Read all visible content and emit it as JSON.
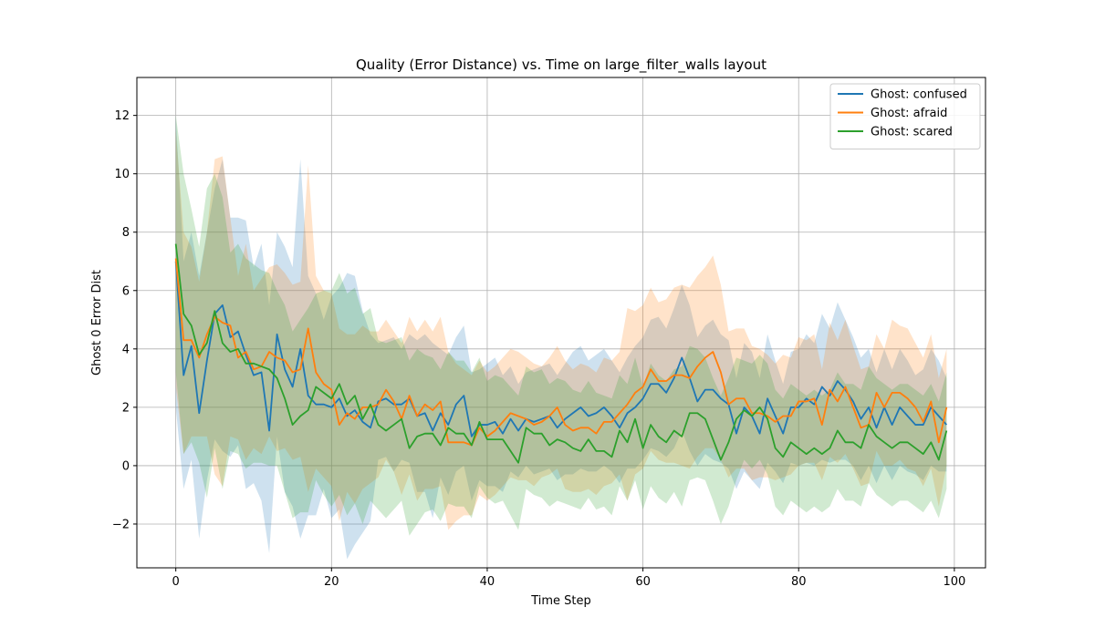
{
  "chart_data": {
    "type": "line",
    "title": "Quality (Error Distance) vs. Time on large_filter_walls layout",
    "xlabel": "Time Step",
    "ylabel": "Ghost 0 Error Dist",
    "xlim": [
      -5,
      104
    ],
    "ylim": [
      -3.5,
      13.3
    ],
    "xticks": [
      0,
      20,
      40,
      60,
      80,
      100
    ],
    "yticks": [
      -2,
      0,
      2,
      4,
      6,
      8,
      10,
      12
    ],
    "xtick_labels": [
      "0",
      "20",
      "40",
      "60",
      "80",
      "100"
    ],
    "ytick_labels": [
      "−2",
      "0",
      "2",
      "4",
      "6",
      "8",
      "10",
      "12"
    ],
    "grid": true,
    "legend_position": "top-right",
    "band_opacity": 0.22,
    "series": [
      {
        "name": "Ghost: confused",
        "color": "#1f77b4",
        "x": [
          0,
          1,
          2,
          3,
          4,
          5,
          6,
          7,
          8,
          9,
          10,
          11,
          12,
          13,
          14,
          15,
          16,
          17,
          18,
          19,
          20,
          21,
          22,
          23,
          24,
          25,
          26,
          27,
          28,
          29,
          30,
          31,
          32,
          33,
          34,
          35,
          36,
          37,
          38,
          39,
          40,
          41,
          42,
          43,
          44,
          45,
          46,
          47,
          48,
          49,
          50,
          51,
          52,
          53,
          54,
          55,
          56,
          57,
          58,
          59,
          60,
          61,
          62,
          63,
          64,
          65,
          66,
          67,
          68,
          69,
          70,
          71,
          72,
          73,
          74,
          75,
          76,
          77,
          78,
          79,
          80,
          81,
          82,
          83,
          84,
          85,
          86,
          87,
          88,
          89,
          90,
          91,
          92,
          93,
          94,
          95,
          96,
          97,
          98,
          99
        ],
        "values": [
          7.0,
          3.1,
          4.1,
          1.8,
          3.6,
          5.2,
          5.5,
          4.4,
          4.6,
          3.8,
          3.1,
          3.2,
          1.2,
          4.5,
          3.3,
          2.7,
          4.0,
          2.4,
          2.1,
          2.1,
          2.0,
          2.3,
          1.7,
          1.9,
          1.5,
          1.3,
          2.2,
          2.3,
          2.1,
          2.1,
          2.3,
          1.7,
          1.8,
          1.2,
          1.8,
          1.4,
          2.1,
          2.4,
          1.0,
          1.4,
          1.4,
          1.5,
          1.1,
          1.6,
          1.2,
          1.6,
          1.5,
          1.6,
          1.7,
          1.3,
          1.6,
          1.8,
          2.0,
          1.7,
          1.8,
          2.0,
          1.7,
          1.3,
          1.8,
          2.0,
          2.3,
          2.8,
          2.8,
          2.5,
          3.0,
          3.7,
          3.0,
          2.2,
          2.6,
          2.6,
          2.3,
          2.1,
          1.1,
          2.0,
          1.7,
          1.1,
          2.3,
          1.7,
          1.1,
          2.0,
          2.0,
          2.3,
          2.1,
          2.7,
          2.4,
          2.9,
          2.6,
          2.2,
          1.6,
          2.0,
          1.3,
          2.0,
          1.4,
          2.0,
          1.7,
          1.4,
          1.4,
          2.0,
          1.7,
          1.4
        ],
        "upper": [
          12.0,
          7.0,
          8.0,
          6.5,
          8.0,
          9.5,
          10.5,
          8.5,
          8.5,
          8.4,
          6.8,
          7.6,
          5.5,
          8.0,
          7.5,
          6.8,
          10.5,
          6.5,
          5.9,
          5.0,
          5.8,
          6.1,
          6.6,
          6.5,
          5.3,
          4.5,
          4.2,
          4.3,
          4.4,
          4.0,
          4.5,
          4.3,
          4.5,
          4.2,
          4.0,
          3.8,
          4.4,
          4.8,
          3.2,
          3.3,
          3.5,
          3.7,
          3.1,
          3.4,
          2.8,
          3.2,
          3.3,
          3.4,
          3.5,
          3.1,
          3.5,
          3.9,
          4.1,
          3.6,
          3.8,
          4.0,
          3.6,
          3.2,
          3.7,
          4.1,
          4.4,
          5.0,
          5.1,
          4.7,
          5.4,
          6.2,
          5.5,
          4.4,
          4.8,
          5.0,
          4.5,
          4.3,
          3.0,
          4.2,
          3.9,
          3.0,
          4.5,
          3.6,
          2.8,
          3.9,
          4.0,
          4.5,
          4.2,
          5.2,
          4.7,
          5.6,
          5.0,
          4.4,
          3.7,
          4.0,
          3.2,
          4.0,
          3.3,
          4.0,
          3.6,
          3.1,
          3.3,
          4.0,
          3.6,
          3.0
        ],
        "lower": [
          2.0,
          -0.8,
          0.2,
          -2.5,
          -0.5,
          0.9,
          0.5,
          0.3,
          0.7,
          -0.8,
          -0.6,
          -1.2,
          -3.0,
          1.0,
          -0.9,
          -1.4,
          -2.5,
          -1.7,
          -1.7,
          -0.8,
          -1.8,
          -1.5,
          -3.2,
          -2.7,
          -2.3,
          -1.9,
          0.2,
          0.3,
          -0.2,
          0.2,
          0.1,
          -0.9,
          -0.9,
          -1.8,
          -0.4,
          -1.0,
          -0.2,
          0.0,
          -1.2,
          -0.5,
          -0.7,
          -0.7,
          -0.9,
          -0.2,
          -0.4,
          0.0,
          -0.3,
          -0.2,
          -0.1,
          -0.5,
          -0.3,
          -0.3,
          -0.1,
          -0.2,
          -0.2,
          0.0,
          -0.2,
          -0.6,
          -0.1,
          -0.1,
          0.2,
          0.6,
          0.5,
          0.3,
          0.6,
          1.2,
          0.5,
          0.0,
          0.4,
          0.2,
          0.1,
          -0.1,
          -0.8,
          -0.2,
          -0.5,
          -0.8,
          0.1,
          -0.2,
          -0.6,
          0.1,
          0.0,
          0.1,
          0.0,
          0.2,
          0.1,
          0.2,
          0.2,
          0.0,
          -0.5,
          0.0,
          -0.6,
          0.0,
          -0.5,
          0.0,
          -0.2,
          -0.3,
          -0.5,
          0.0,
          -0.2,
          -0.2
        ]
      },
      {
        "name": "Ghost: afraid",
        "color": "#ff7f0e",
        "x": [
          0,
          1,
          2,
          3,
          4,
          5,
          6,
          7,
          8,
          9,
          10,
          11,
          12,
          13,
          14,
          15,
          16,
          17,
          18,
          19,
          20,
          21,
          22,
          23,
          24,
          25,
          26,
          27,
          28,
          29,
          30,
          31,
          32,
          33,
          34,
          35,
          36,
          37,
          38,
          39,
          40,
          41,
          42,
          43,
          44,
          45,
          46,
          47,
          48,
          49,
          50,
          51,
          52,
          53,
          54,
          55,
          56,
          57,
          58,
          59,
          60,
          61,
          62,
          63,
          64,
          65,
          66,
          67,
          68,
          69,
          70,
          71,
          72,
          73,
          74,
          75,
          76,
          77,
          78,
          79,
          80,
          81,
          82,
          83,
          84,
          85,
          86,
          87,
          88,
          89,
          90,
          91,
          92,
          93,
          94,
          95,
          96,
          97,
          98,
          99
        ],
        "values": [
          7.1,
          4.3,
          4.3,
          3.7,
          4.5,
          5.1,
          4.9,
          4.8,
          3.7,
          3.9,
          3.3,
          3.4,
          3.9,
          3.7,
          3.6,
          3.2,
          3.3,
          4.7,
          3.2,
          2.8,
          2.6,
          1.4,
          1.8,
          1.6,
          2.0,
          2.0,
          2.1,
          2.6,
          2.2,
          1.6,
          2.4,
          1.7,
          2.1,
          1.9,
          2.2,
          0.8,
          0.8,
          0.8,
          0.7,
          1.3,
          1.0,
          1.2,
          1.5,
          1.8,
          1.7,
          1.6,
          1.4,
          1.5,
          1.7,
          2.0,
          1.4,
          1.2,
          1.3,
          1.3,
          1.1,
          1.5,
          1.5,
          1.8,
          2.1,
          2.5,
          2.7,
          3.3,
          2.9,
          2.9,
          3.1,
          3.1,
          3.0,
          3.4,
          3.7,
          3.9,
          3.2,
          2.1,
          2.3,
          2.3,
          1.8,
          1.8,
          1.7,
          1.5,
          1.7,
          1.7,
          2.2,
          2.2,
          2.3,
          1.4,
          2.6,
          2.2,
          2.7,
          2.0,
          1.3,
          1.4,
          2.5,
          2.0,
          2.5,
          2.5,
          2.3,
          2.0,
          1.5,
          2.2,
          0.8,
          2.0
        ],
        "upper": [
          11.5,
          8.0,
          7.5,
          6.3,
          8.0,
          10.5,
          10.6,
          8.5,
          6.5,
          7.6,
          6.0,
          6.4,
          6.8,
          6.9,
          6.6,
          6.2,
          6.3,
          10.3,
          6.5,
          6.0,
          5.9,
          4.7,
          4.5,
          4.5,
          4.8,
          4.6,
          4.6,
          5.0,
          4.6,
          4.2,
          5.1,
          4.6,
          5.0,
          4.6,
          5.1,
          3.9,
          3.5,
          3.3,
          3.1,
          3.6,
          3.2,
          3.4,
          3.7,
          4.0,
          3.9,
          3.7,
          3.5,
          3.4,
          3.7,
          4.1,
          3.6,
          3.3,
          3.5,
          3.4,
          3.2,
          3.7,
          3.6,
          3.9,
          5.4,
          5.3,
          5.5,
          6.1,
          5.6,
          5.7,
          6.1,
          6.2,
          6.1,
          6.5,
          6.8,
          7.2,
          6.2,
          4.6,
          4.7,
          4.7,
          4.1,
          4.0,
          3.8,
          3.5,
          3.8,
          3.7,
          4.4,
          4.3,
          4.5,
          3.3,
          4.9,
          4.3,
          5.0,
          4.1,
          3.3,
          3.4,
          4.5,
          4.0,
          5.0,
          4.8,
          4.7,
          4.2,
          3.7,
          4.5,
          3.0,
          4.0
        ],
        "lower": [
          2.7,
          0.4,
          1.0,
          1.0,
          1.0,
          -0.3,
          -0.7,
          1.0,
          0.9,
          0.2,
          0.6,
          0.4,
          1.0,
          0.5,
          0.6,
          0.2,
          0.3,
          -0.9,
          -0.1,
          -0.4,
          -0.7,
          -1.9,
          -0.9,
          -1.3,
          -0.8,
          -0.6,
          -0.4,
          0.2,
          -0.2,
          -1.0,
          -0.3,
          -1.2,
          -0.8,
          -0.8,
          -0.7,
          -2.2,
          -1.9,
          -1.7,
          -1.7,
          -1.0,
          -1.2,
          -1.0,
          -0.7,
          -0.4,
          -0.5,
          -0.5,
          -0.7,
          -0.4,
          -0.3,
          -0.1,
          -0.8,
          -0.9,
          -0.9,
          -0.8,
          -1.0,
          -0.7,
          -0.6,
          -0.3,
          -1.2,
          -0.3,
          -0.1,
          0.5,
          0.2,
          0.1,
          0.1,
          0.0,
          -0.1,
          0.3,
          0.6,
          0.6,
          0.2,
          -0.4,
          -0.1,
          -0.1,
          -0.5,
          -0.4,
          -0.4,
          -0.5,
          -0.4,
          -0.3,
          0.0,
          0.1,
          0.1,
          -0.5,
          0.3,
          0.1,
          0.4,
          -0.1,
          -0.7,
          -0.6,
          0.5,
          0.0,
          0.0,
          0.2,
          -0.1,
          -0.2,
          -0.7,
          -0.1,
          -1.4,
          0.0
        ]
      },
      {
        "name": "Ghost: scared",
        "color": "#2ca02c",
        "x": [
          0,
          1,
          2,
          3,
          4,
          5,
          6,
          7,
          8,
          9,
          10,
          11,
          12,
          13,
          14,
          15,
          16,
          17,
          18,
          19,
          20,
          21,
          22,
          23,
          24,
          25,
          26,
          27,
          28,
          29,
          30,
          31,
          32,
          33,
          34,
          35,
          36,
          37,
          38,
          39,
          40,
          41,
          42,
          43,
          44,
          45,
          46,
          47,
          48,
          49,
          50,
          51,
          52,
          53,
          54,
          55,
          56,
          57,
          58,
          59,
          60,
          61,
          62,
          63,
          64,
          65,
          66,
          67,
          68,
          69,
          70,
          71,
          72,
          73,
          74,
          75,
          76,
          77,
          78,
          79,
          80,
          81,
          82,
          83,
          84,
          85,
          86,
          87,
          88,
          89,
          90,
          91,
          92,
          93,
          94,
          95,
          96,
          97,
          98,
          99
        ],
        "values": [
          7.6,
          5.2,
          4.8,
          3.8,
          4.2,
          5.3,
          4.2,
          3.9,
          4.0,
          3.5,
          3.5,
          3.4,
          3.3,
          3.0,
          2.3,
          1.4,
          1.7,
          1.9,
          2.7,
          2.5,
          2.3,
          2.8,
          2.1,
          2.4,
          1.6,
          2.1,
          1.4,
          1.2,
          1.4,
          1.6,
          0.6,
          1.0,
          1.1,
          1.1,
          0.7,
          1.3,
          1.1,
          1.1,
          0.7,
          1.5,
          0.9,
          0.9,
          0.9,
          0.5,
          0.1,
          1.3,
          1.1,
          1.1,
          0.7,
          0.9,
          0.8,
          0.6,
          0.5,
          0.9,
          0.5,
          0.5,
          0.3,
          1.2,
          0.8,
          1.6,
          0.6,
          1.4,
          1.0,
          0.8,
          1.2,
          1.0,
          1.8,
          1.8,
          1.6,
          0.9,
          0.2,
          0.8,
          1.6,
          1.9,
          1.7,
          2.0,
          1.6,
          0.6,
          0.3,
          0.8,
          0.6,
          0.4,
          0.6,
          0.4,
          0.6,
          1.2,
          0.8,
          0.8,
          0.6,
          1.4,
          1.0,
          0.8,
          0.6,
          0.8,
          0.8,
          0.6,
          0.4,
          0.8,
          0.2,
          1.2
        ],
        "upper": [
          12.0,
          10.0,
          8.8,
          7.5,
          9.5,
          10.0,
          9.2,
          7.3,
          7.6,
          7.1,
          6.9,
          6.7,
          6.6,
          6.0,
          5.5,
          4.6,
          5.0,
          5.4,
          5.9,
          6.0,
          6.0,
          6.6,
          5.9,
          6.1,
          5.2,
          5.4,
          4.3,
          4.2,
          4.3,
          4.4,
          3.6,
          4.0,
          3.8,
          3.7,
          3.3,
          3.9,
          3.6,
          3.6,
          3.2,
          3.7,
          2.9,
          3.1,
          3.0,
          2.7,
          2.4,
          3.4,
          3.2,
          3.3,
          2.8,
          3.0,
          2.9,
          2.6,
          2.5,
          2.9,
          2.5,
          2.4,
          2.3,
          3.1,
          2.8,
          3.7,
          2.7,
          3.5,
          3.1,
          2.9,
          3.3,
          3.4,
          4.1,
          4.0,
          3.7,
          3.0,
          2.4,
          3.0,
          3.7,
          3.6,
          3.5,
          3.8,
          3.5,
          2.6,
          2.3,
          2.8,
          2.6,
          2.4,
          2.6,
          2.4,
          2.6,
          3.2,
          2.8,
          2.8,
          2.6,
          3.4,
          3.0,
          2.8,
          2.6,
          2.8,
          2.8,
          2.6,
          2.4,
          2.8,
          2.2,
          3.2
        ],
        "lower": [
          3.2,
          0.4,
          0.8,
          0.1,
          -1.1,
          0.6,
          -0.8,
          0.5,
          0.4,
          -0.1,
          0.1,
          0.1,
          0.0,
          0.0,
          -0.9,
          -1.8,
          -1.6,
          -1.6,
          -0.5,
          -1.0,
          -1.4,
          -1.0,
          -1.7,
          -1.3,
          -2.0,
          -1.2,
          -1.5,
          -1.8,
          -1.5,
          -1.2,
          -2.4,
          -2.0,
          -1.6,
          -1.5,
          -1.9,
          -1.3,
          -1.4,
          -1.4,
          -1.8,
          -0.7,
          -1.1,
          -1.3,
          -1.2,
          -1.7,
          -2.2,
          -0.8,
          -1.0,
          -1.1,
          -1.4,
          -1.2,
          -1.3,
          -1.4,
          -1.5,
          -1.1,
          -1.5,
          -1.4,
          -1.7,
          -0.7,
          -1.2,
          -0.5,
          -1.5,
          -0.7,
          -1.1,
          -1.3,
          -0.9,
          -1.4,
          -0.5,
          -0.4,
          -0.5,
          -1.2,
          -2.0,
          -1.4,
          -0.5,
          0.2,
          -0.1,
          0.2,
          -0.3,
          -1.4,
          -1.7,
          -1.2,
          -1.4,
          -1.6,
          -1.4,
          -1.6,
          -1.4,
          -0.8,
          -1.2,
          -1.2,
          -1.4,
          -0.6,
          -1.0,
          -1.2,
          -1.4,
          -1.2,
          -1.2,
          -1.4,
          -1.6,
          -1.2,
          -1.8,
          -0.8
        ]
      }
    ]
  }
}
